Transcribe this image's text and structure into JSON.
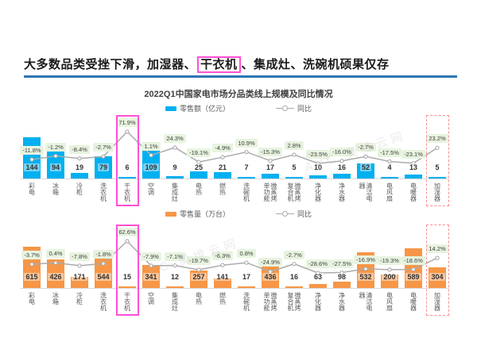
{
  "headline": {
    "pre": "大多数品类受挫下滑，加湿器、",
    "highlight": "干衣机",
    "post": "、集成灶、洗碗机硕果仅存"
  },
  "chart_title": "2022Q1中国家电市场分品类线上规模及同比情况",
  "watermark": "AVC 奥维云网",
  "colors": {
    "bar_blue": "#00B0F0",
    "bar_orange": "#F79646",
    "line_gray": "#ABABAB",
    "pill_green_bg": "#E7F3DF",
    "highlight_pink": "#FF50D5",
    "highlight_red": "#FF8C8C",
    "rule_blue": "#2E74B5"
  },
  "highlights": [
    {
      "category": "干衣机",
      "style": "solid_pink"
    },
    {
      "category": "加湿器",
      "style": "dashed_red"
    }
  ],
  "chart_data": [
    {
      "type": "bar",
      "title": "零售额（亿元）及同比",
      "legend_bar": "零售额（亿元）",
      "legend_line": "同比",
      "legend_position": "top",
      "bar_color_key": "bar_blue",
      "categories": [
        "彩电",
        "冰箱",
        "冷柜",
        "洗衣机",
        "干衣机",
        "空调",
        "集成灶",
        "电热",
        "燃热",
        "洗碗机",
        "微蒸烤单功能",
        "微蒸烤复合机",
        "净化器",
        "净水器",
        "清洁电器",
        "电风扇",
        "电暖器",
        "加湿器"
      ],
      "values": [
        144,
        94,
        19,
        79,
        6,
        109,
        9,
        25,
        21,
        7,
        17,
        5,
        10,
        16,
        52,
        4,
        13,
        5
      ],
      "growth_values": [
        -11.8,
        -1.2,
        -8.4,
        -2.7,
        71.9,
        1.1,
        24.3,
        -19.1,
        -4.9,
        10.9,
        -15.3,
        2.8,
        -23.5,
        -16.0,
        -2.7,
        -17.5,
        -23.1,
        23.2
      ],
      "growth_labels": [
        "-11.8%",
        "-1.2%",
        "-8.4%",
        "-2.7%",
        "71.9%",
        "1.1%",
        "24.3%",
        "-19.1%",
        "-4.9%",
        "10.9%",
        "-15.3%",
        "2.8%",
        "-23.5%",
        "-16.0%",
        "-2.7%",
        "-17.5%",
        "-23.1%",
        "23.2%"
      ]
    },
    {
      "type": "bar",
      "title": "零售量（万台）及同比",
      "legend_bar": "零售量（万台）",
      "legend_line": "同比",
      "legend_position": "top",
      "bar_color_key": "bar_orange",
      "categories": [
        "彩电",
        "冰箱",
        "冷柜",
        "洗衣机",
        "干衣机",
        "空调",
        "集成灶",
        "电热",
        "燃热",
        "洗碗机",
        "微蒸烤单功能",
        "微蒸烤复合机",
        "净化器",
        "净水器",
        "清洁电器",
        "电风扇",
        "电暖器",
        "加湿器"
      ],
      "values": [
        615,
        426,
        171,
        544,
        15,
        341,
        12,
        257,
        141,
        17,
        436,
        16,
        63,
        98,
        532,
        200,
        589,
        304
      ],
      "growth_values": [
        -3.7,
        0.4,
        -7.8,
        -1.8,
        62.6,
        -7.9,
        -7.1,
        -19.7,
        -6.3,
        0.8,
        -24.9,
        -2.7,
        -28.6,
        -27.5,
        -16.9,
        -19.3,
        -18.6,
        14.2
      ],
      "growth_labels": [
        "-3.7%",
        "0.4%",
        "-7.8%",
        "-1.8%",
        "62.6%",
        "-7.9%",
        "-7.1%",
        "-19.7%",
        "-6.3%",
        "0.8%",
        "-24.9%",
        "-2.7%",
        "-28.6%",
        "-27.5%",
        "-16.9%",
        "-19.3%",
        "-18.6%",
        "14.2%"
      ]
    }
  ]
}
